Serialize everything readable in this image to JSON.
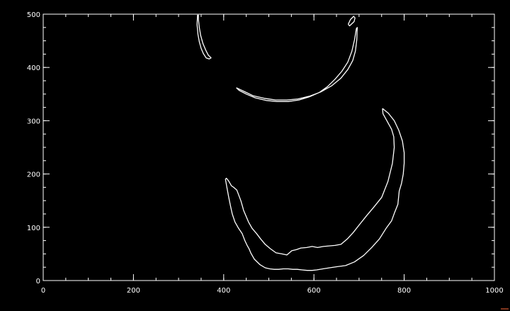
{
  "chart_data": {
    "type": "line",
    "title": "",
    "xlabel": "",
    "ylabel": "",
    "xlim": [
      0,
      1000
    ],
    "ylim": [
      0,
      500
    ],
    "x_ticks": [
      0,
      200,
      400,
      600,
      800,
      1000
    ],
    "y_ticks": [
      0,
      100,
      200,
      300,
      400,
      500
    ],
    "x_minor_step": 50,
    "y_minor_step": 25,
    "background": "#000000",
    "foreground": "#ffffff",
    "accent": "#ff6a3a",
    "grid": false,
    "legend": "none",
    "series": [
      {
        "x": [
          342,
          341,
          343,
          346,
          350,
          355,
          361,
          368,
          372,
          366,
          360,
          354,
          349,
          346,
          344,
          344
        ],
        "y": [
          499,
          480,
          462,
          448,
          436,
          426,
          418,
          416,
          418,
          423,
          433,
          445,
          460,
          475,
          490,
          499
        ]
      },
      {
        "x": [
          428,
          445,
          465,
          490,
          515,
          540,
          565,
          590,
          615,
          640,
          660,
          675,
          686,
          692,
          695,
          696,
          694,
          690,
          684,
          675,
          662,
          647,
          630,
          612,
          590,
          567,
          543,
          518,
          494,
          470,
          450,
          434,
          428
        ],
        "y": [
          362,
          355,
          347,
          342,
          339,
          339,
          341,
          346,
          354,
          366,
          380,
          396,
          413,
          431,
          452,
          475,
          473,
          452,
          430,
          410,
          393,
          378,
          364,
          353,
          345,
          339,
          336,
          336,
          338,
          343,
          350,
          357,
          362
        ]
      },
      {
        "x": [
          676,
          681,
          688,
          691,
          689,
          684,
          679,
          676
        ],
        "y": [
          481,
          490,
          496,
          493,
          486,
          482,
          478,
          481
        ]
      },
      {
        "x": [
          752,
          765,
          778,
          788,
          796,
          800,
          800,
          798,
          794,
          789,
          786,
          779,
          772,
          760,
          745,
          728,
          710,
          690,
          670,
          652,
          635,
          620,
          606,
          596,
          585,
          574,
          563,
          553,
          543,
          532,
          522,
          512,
          502,
          492,
          480,
          468,
          460,
          456,
          452,
          447,
          441,
          433,
          425,
          419,
          415,
          411,
          407,
          404,
          406,
          411,
          417,
          422,
          429,
          438,
          442,
          444,
          449,
          455,
          463,
          473,
          482,
          492,
          503,
          516,
          529,
          540,
          551,
          561,
          571,
          584,
          596,
          608,
          621,
          634,
          647,
          660,
          674,
          687,
          701,
          717,
          733,
          750,
          764,
          774,
          778,
          777,
          772,
          763,
          753,
          752
        ],
        "y": [
          323,
          314,
          300,
          282,
          262,
          240,
          220,
          200,
          182,
          168,
          143,
          128,
          112,
          98,
          78,
          62,
          47,
          35,
          28,
          26,
          24,
          22,
          20,
          19,
          19,
          20,
          21,
          21,
          22,
          22,
          21,
          21,
          22,
          24,
          30,
          40,
          52,
          60,
          66,
          75,
          88,
          98,
          110,
          125,
          140,
          157,
          175,
          190,
          192,
          187,
          178,
          175,
          170,
          150,
          138,
          132,
          122,
          110,
          98,
          88,
          78,
          68,
          60,
          52,
          50,
          48,
          56,
          58,
          61,
          62,
          64,
          62,
          64,
          65,
          66,
          68,
          78,
          90,
          105,
          122,
          138,
          156,
          186,
          220,
          250,
          270,
          284,
          298,
          313,
          323
        ]
      }
    ]
  }
}
